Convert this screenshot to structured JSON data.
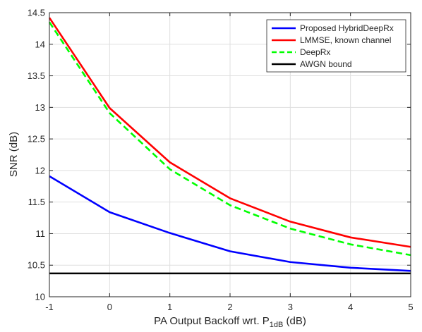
{
  "chart_data": {
    "type": "line",
    "title": "",
    "xlabel": "PA Output Backoff wrt. P",
    "xlabel_sub": "1dB",
    "xlabel_unit": " (dB)",
    "ylabel": "SNR (dB)",
    "xlim": [
      -1,
      5
    ],
    "ylim": [
      10,
      14.5
    ],
    "grid": true,
    "legend_position": "top-right",
    "x": [
      -1,
      0,
      1,
      2,
      3,
      4,
      5
    ],
    "x_ticks": [
      "-1",
      "0",
      "1",
      "2",
      "3",
      "4",
      "5"
    ],
    "y_ticks": [
      "10",
      "10.5",
      "11",
      "11.5",
      "12",
      "12.5",
      "13",
      "13.5",
      "14",
      "14.5"
    ],
    "series": [
      {
        "name": "Proposed HybridDeepRx",
        "color": "#0000ff",
        "dash": "solid",
        "values": [
          11.91,
          11.34,
          11.01,
          10.72,
          10.55,
          10.46,
          10.41
        ]
      },
      {
        "name": "LMMSE, known channel",
        "color": "#ff0000",
        "dash": "solid",
        "values": [
          14.42,
          12.99,
          12.13,
          11.56,
          11.19,
          10.94,
          10.79
        ]
      },
      {
        "name": "DeepRx",
        "color": "#00ff00",
        "dash": "dashed",
        "values": [
          14.35,
          12.91,
          12.02,
          11.45,
          11.08,
          10.83,
          10.66
        ]
      },
      {
        "name": "AWGN bound",
        "color": "#000000",
        "dash": "solid",
        "values": [
          10.37,
          10.37,
          10.37,
          10.37,
          10.37,
          10.37,
          10.37
        ]
      }
    ]
  }
}
